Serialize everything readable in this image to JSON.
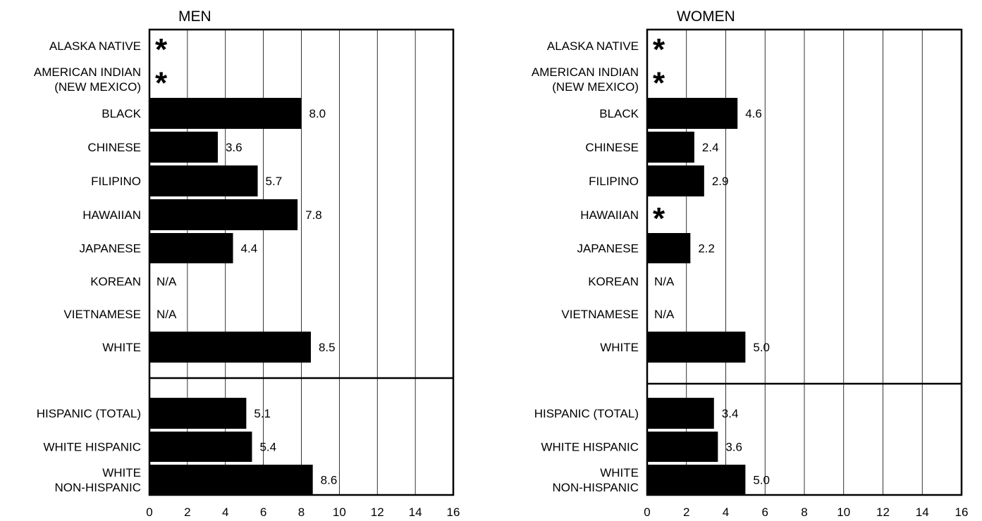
{
  "chart_data": [
    {
      "type": "bar",
      "orientation": "horizontal",
      "title": "MEN",
      "xlim": [
        0,
        16
      ],
      "xticks": [
        "0",
        "2",
        "4",
        "6",
        "8",
        "10",
        "12",
        "14",
        "16"
      ],
      "grid": true,
      "groups": [
        {
          "categories": [
            {
              "label": [
                "ALASKA NATIVE"
              ],
              "value": null,
              "display": "*"
            },
            {
              "label": [
                "AMERICAN INDIAN",
                "(NEW MEXICO)"
              ],
              "value": null,
              "display": "*"
            },
            {
              "label": [
                "BLACK"
              ],
              "value": 8.0,
              "display": "8.0"
            },
            {
              "label": [
                "CHINESE"
              ],
              "value": 3.6,
              "display": "3.6"
            },
            {
              "label": [
                "FILIPINO"
              ],
              "value": 5.7,
              "display": "5.7"
            },
            {
              "label": [
                "HAWAIIAN"
              ],
              "value": 7.8,
              "display": "7.8"
            },
            {
              "label": [
                "JAPANESE"
              ],
              "value": 4.4,
              "display": "4.4"
            },
            {
              "label": [
                "KOREAN"
              ],
              "value": null,
              "display": "N/A"
            },
            {
              "label": [
                "VIETNAMESE"
              ],
              "value": null,
              "display": "N/A"
            },
            {
              "label": [
                "WHITE"
              ],
              "value": 8.5,
              "display": "8.5"
            }
          ]
        },
        {
          "categories": [
            {
              "label": [
                "HISPANIC (TOTAL)"
              ],
              "value": 5.1,
              "display": "5.1"
            },
            {
              "label": [
                "WHITE HISPANIC"
              ],
              "value": 5.4,
              "display": "5.4"
            },
            {
              "label": [
                "WHITE",
                "NON-HISPANIC"
              ],
              "value": 8.6,
              "display": "8.6"
            }
          ]
        }
      ]
    },
    {
      "type": "bar",
      "orientation": "horizontal",
      "title": "WOMEN",
      "xlim": [
        0,
        16
      ],
      "xticks": [
        "0",
        "2",
        "4",
        "6",
        "8",
        "10",
        "12",
        "14",
        "16"
      ],
      "grid": true,
      "groups": [
        {
          "categories": [
            {
              "label": [
                "ALASKA NATIVE"
              ],
              "value": null,
              "display": "*"
            },
            {
              "label": [
                "AMERICAN INDIAN",
                "(NEW MEXICO)"
              ],
              "value": null,
              "display": "*"
            },
            {
              "label": [
                "BLACK"
              ],
              "value": 4.6,
              "display": "4.6"
            },
            {
              "label": [
                "CHINESE"
              ],
              "value": 2.4,
              "display": "2.4"
            },
            {
              "label": [
                "FILIPINO"
              ],
              "value": 2.9,
              "display": "2.9"
            },
            {
              "label": [
                "HAWAIIAN"
              ],
              "value": null,
              "display": "*"
            },
            {
              "label": [
                "JAPANESE"
              ],
              "value": 2.2,
              "display": "2.2"
            },
            {
              "label": [
                "KOREAN"
              ],
              "value": null,
              "display": "N/A"
            },
            {
              "label": [
                "VIETNAMESE"
              ],
              "value": null,
              "display": "N/A"
            },
            {
              "label": [
                "WHITE"
              ],
              "value": 5.0,
              "display": "5.0"
            }
          ]
        },
        {
          "categories": [
            {
              "label": [
                "HISPANIC (TOTAL)"
              ],
              "value": 3.4,
              "display": "3.4"
            },
            {
              "label": [
                "WHITE HISPANIC"
              ],
              "value": 3.6,
              "display": "3.6"
            },
            {
              "label": [
                "WHITE",
                "NON-HISPANIC"
              ],
              "value": 5.0,
              "display": "5.0"
            }
          ]
        }
      ]
    }
  ]
}
